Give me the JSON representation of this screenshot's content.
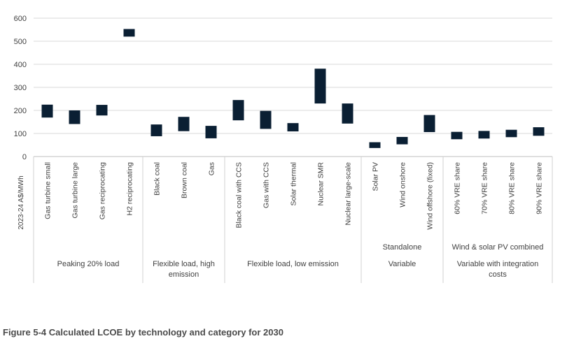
{
  "chart_data": {
    "type": "bar",
    "subtype": "floating-range",
    "ylabel": "2023-24 A$/MWh",
    "ylim": [
      0,
      600
    ],
    "yticks": [
      "0",
      "100",
      "200",
      "300",
      "400",
      "500",
      "600"
    ],
    "grid": true,
    "bar_color": "#0a1f33",
    "grid_color": "#d9d9d9",
    "categories": [
      "Gas turbine small",
      "Gas turbine large",
      "Gas reciprocating",
      "H2 reciprocating",
      "Black coal",
      "Brown coal",
      "Gas",
      "Black coal with CCS",
      "Gas with CCS",
      "Solar thermal",
      "Nuclear SMR",
      "Nuclear large-scale",
      "Solar PV",
      "Wind onshore",
      "Wind offshore (fixed)",
      "60% VRE share",
      "70% VRE share",
      "80% VRE share",
      "90% VRE share"
    ],
    "series": [
      {
        "low": [
          169,
          141,
          178,
          520,
          88,
          110,
          79,
          157,
          120,
          109,
          230,
          143,
          37,
          53,
          106,
          75,
          78,
          84,
          90
        ],
        "high": [
          225,
          200,
          224,
          553,
          139,
          172,
          133,
          245,
          198,
          145,
          381,
          230,
          62,
          85,
          180,
          107,
          111,
          116,
          127
        ]
      }
    ],
    "group_levels": [
      {
        "level": "sub",
        "groups": [
          {
            "label": "",
            "span": 4
          },
          {
            "label": "",
            "span": 3
          },
          {
            "label": "",
            "span": 5
          },
          {
            "label": "Standalone",
            "span": 3
          },
          {
            "label": "Wind & solar PV combined",
            "span": 4
          }
        ]
      },
      {
        "level": "main",
        "groups": [
          {
            "label": "Peaking 20% load",
            "span": 4
          },
          {
            "label": "Flexible load, high emission",
            "span": 3
          },
          {
            "label": "Flexible load, low emission",
            "span": 5
          },
          {
            "label": "Variable",
            "span": 3
          },
          {
            "label": "Variable with integration costs",
            "span": 4
          }
        ]
      }
    ]
  },
  "caption": "Figure 5-4 Calculated LCOE by technology and category for 2030"
}
